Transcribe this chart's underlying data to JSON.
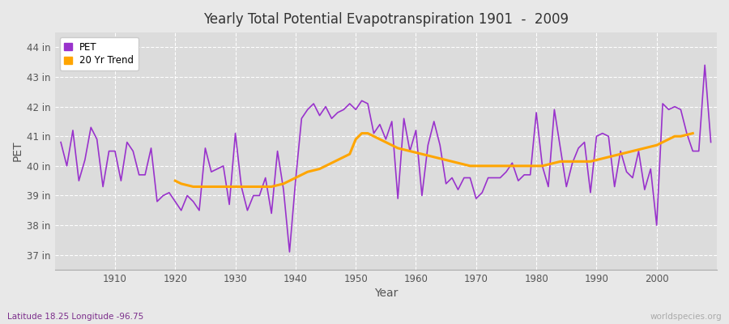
{
  "title": "Yearly Total Potential Evapotranspiration 1901  -  2009",
  "xlabel": "Year",
  "ylabel": "PET",
  "subtitle": "Latitude 18.25 Longitude -96.75",
  "watermark": "worldspecies.org",
  "pet_color": "#9932CC",
  "trend_color": "#FFA500",
  "fig_bg_color": "#E8E8E8",
  "plot_bg_color": "#DCDCDC",
  "ylim": [
    36.5,
    44.5
  ],
  "yticks": [
    37,
    38,
    39,
    40,
    41,
    42,
    43,
    44
  ],
  "ytick_labels": [
    "37 in",
    "38 in",
    "39 in",
    "40 in",
    "41 in",
    "42 in",
    "43 in",
    "44 in"
  ],
  "xlim": [
    1900,
    2010
  ],
  "xticks": [
    1910,
    1920,
    1930,
    1940,
    1950,
    1960,
    1970,
    1980,
    1990,
    2000
  ],
  "years": [
    1901,
    1902,
    1903,
    1904,
    1905,
    1906,
    1907,
    1908,
    1909,
    1910,
    1911,
    1912,
    1913,
    1914,
    1915,
    1916,
    1917,
    1918,
    1919,
    1920,
    1921,
    1922,
    1923,
    1924,
    1925,
    1926,
    1927,
    1928,
    1929,
    1930,
    1931,
    1932,
    1933,
    1934,
    1935,
    1936,
    1937,
    1938,
    1939,
    1940,
    1941,
    1942,
    1943,
    1944,
    1945,
    1946,
    1947,
    1948,
    1949,
    1950,
    1951,
    1952,
    1953,
    1954,
    1955,
    1956,
    1957,
    1958,
    1959,
    1960,
    1961,
    1962,
    1963,
    1964,
    1965,
    1966,
    1967,
    1968,
    1969,
    1970,
    1971,
    1972,
    1973,
    1974,
    1975,
    1976,
    1977,
    1978,
    1979,
    1980,
    1981,
    1982,
    1983,
    1984,
    1985,
    1986,
    1987,
    1988,
    1989,
    1990,
    1991,
    1992,
    1993,
    1994,
    1995,
    1996,
    1997,
    1998,
    1999,
    2000,
    2001,
    2002,
    2003,
    2004,
    2005,
    2006,
    2007,
    2008,
    2009
  ],
  "pet_values": [
    40.8,
    40.0,
    41.2,
    39.5,
    40.2,
    41.3,
    40.9,
    39.3,
    40.5,
    40.5,
    39.5,
    40.8,
    40.5,
    39.7,
    39.7,
    40.6,
    38.8,
    39.0,
    39.1,
    38.8,
    38.5,
    39.0,
    38.8,
    38.5,
    40.6,
    39.8,
    39.9,
    40.0,
    38.7,
    41.1,
    39.3,
    38.5,
    39.0,
    39.0,
    39.6,
    38.4,
    40.5,
    39.2,
    37.1,
    39.5,
    41.6,
    41.9,
    42.1,
    41.7,
    42.0,
    41.6,
    41.8,
    41.9,
    42.1,
    41.9,
    42.2,
    42.1,
    41.1,
    41.4,
    40.9,
    41.5,
    38.9,
    41.6,
    40.5,
    41.2,
    39.0,
    40.7,
    41.5,
    40.7,
    39.4,
    39.6,
    39.2,
    39.6,
    39.6,
    38.9,
    39.1,
    39.6,
    39.6,
    39.6,
    39.8,
    40.1,
    39.5,
    39.7,
    39.7,
    41.8,
    40.0,
    39.3,
    41.9,
    40.6,
    39.3,
    40.1,
    40.6,
    40.8,
    39.1,
    41.0,
    41.1,
    41.0,
    39.3,
    40.5,
    39.8,
    39.6,
    40.5,
    39.2,
    39.9,
    38.0,
    42.1,
    41.9,
    42.0,
    41.9,
    41.1,
    40.5,
    40.5,
    43.4,
    40.8
  ],
  "trend_values": [
    null,
    null,
    null,
    null,
    null,
    null,
    null,
    null,
    null,
    null,
    null,
    null,
    null,
    null,
    null,
    null,
    null,
    null,
    null,
    39.5,
    39.4,
    39.35,
    39.3,
    39.3,
    39.3,
    39.3,
    39.3,
    39.3,
    39.3,
    39.3,
    39.3,
    39.3,
    39.3,
    39.3,
    39.3,
    39.3,
    39.35,
    39.4,
    39.5,
    39.6,
    39.7,
    39.8,
    39.85,
    39.9,
    40.0,
    40.1,
    40.2,
    40.3,
    40.4,
    40.9,
    41.1,
    41.1,
    41.0,
    40.9,
    40.8,
    40.7,
    40.6,
    40.55,
    40.5,
    40.45,
    40.4,
    40.35,
    40.3,
    40.25,
    40.2,
    40.15,
    40.1,
    40.05,
    40.0,
    40.0,
    40.0,
    40.0,
    40.0,
    40.0,
    40.0,
    40.0,
    40.0,
    40.0,
    40.0,
    40.0,
    40.0,
    40.05,
    40.1,
    40.15,
    40.15,
    40.15,
    40.15,
    40.15,
    40.15,
    40.2,
    40.25,
    40.3,
    40.35,
    40.4,
    40.45,
    40.5,
    40.55,
    40.6,
    40.65,
    40.7,
    40.8,
    40.9,
    41.0,
    41.0,
    41.05,
    41.1
  ]
}
